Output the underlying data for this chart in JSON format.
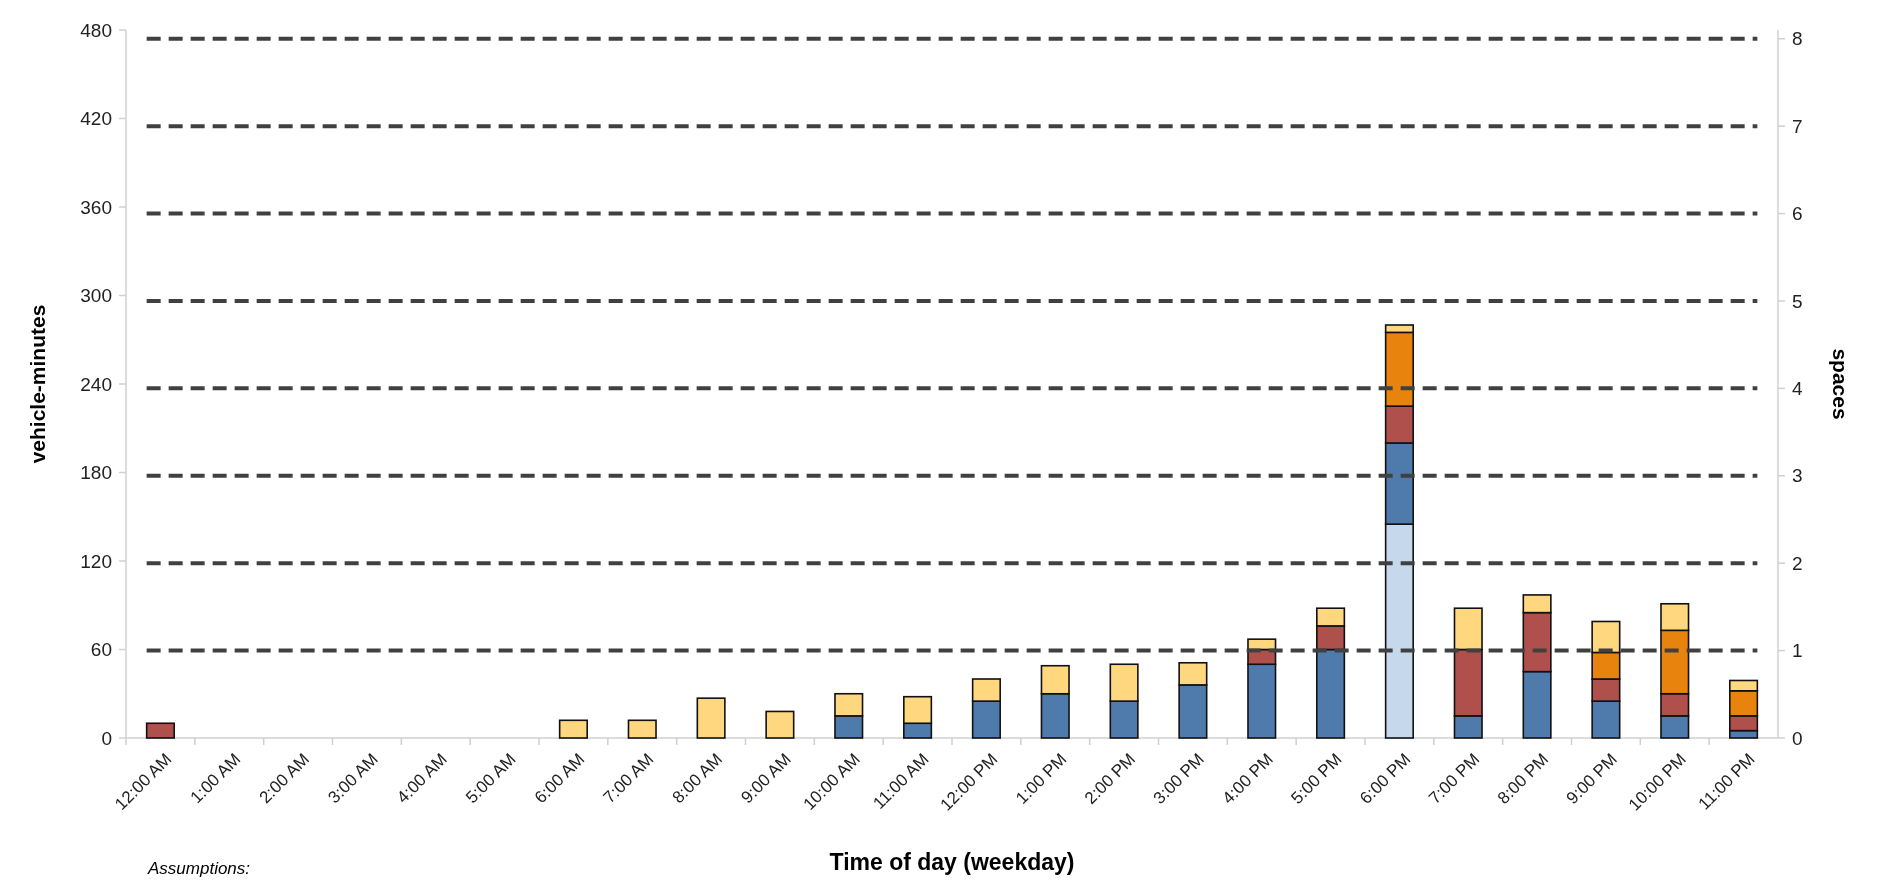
{
  "chart_data": {
    "type": "bar",
    "stacked": true,
    "xlabel": "Time of day (weekday)",
    "ylabel": "vehicle-minutes",
    "y2label": "spaces",
    "categories": [
      "12:00 AM",
      "1:00 AM",
      "2:00 AM",
      "3:00 AM",
      "4:00 AM",
      "5:00 AM",
      "6:00 AM",
      "7:00 AM",
      "8:00 AM",
      "9:00 AM",
      "10:00 AM",
      "11:00 AM",
      "12:00 PM",
      "1:00 PM",
      "2:00 PM",
      "3:00 PM",
      "4:00 PM",
      "5:00 PM",
      "6:00 PM",
      "7:00 PM",
      "8:00 PM",
      "9:00 PM",
      "10:00 PM",
      "11:00 PM"
    ],
    "series": [
      {
        "color": "#c5d8ec",
        "values": [
          0,
          0,
          0,
          0,
          0,
          0,
          0,
          0,
          0,
          0,
          0,
          0,
          0,
          0,
          0,
          0,
          0,
          0,
          145,
          0,
          0,
          0,
          0,
          0
        ]
      },
      {
        "color": "#4f7bac",
        "values": [
          0,
          0,
          0,
          0,
          0,
          0,
          0,
          0,
          0,
          0,
          15,
          10,
          25,
          30,
          25,
          36,
          50,
          60,
          55,
          15,
          45,
          25,
          15,
          5
        ]
      },
      {
        "color": "#b0504d",
        "values": [
          10,
          0,
          0,
          0,
          0,
          0,
          0,
          0,
          0,
          0,
          0,
          0,
          0,
          0,
          0,
          0,
          10,
          16,
          25,
          45,
          40,
          15,
          15,
          10
        ]
      },
      {
        "color": "#e8830e",
        "values": [
          0,
          0,
          0,
          0,
          0,
          0,
          0,
          0,
          0,
          0,
          0,
          0,
          0,
          0,
          0,
          0,
          0,
          0,
          50,
          0,
          0,
          18,
          43,
          17
        ]
      },
      {
        "color": "#fed77e",
        "values": [
          0,
          0,
          0,
          0,
          0,
          0,
          12,
          12,
          27,
          18,
          15,
          18,
          15,
          19,
          25,
          15,
          7,
          12,
          5,
          28,
          12,
          21,
          18,
          7
        ]
      }
    ],
    "ylim": [
      0,
      480
    ],
    "yticks": [
      0,
      60,
      120,
      180,
      240,
      300,
      360,
      420,
      480
    ],
    "y2lim": [
      0,
      8.1
    ],
    "y2ticks": [
      0,
      1,
      2,
      3,
      4,
      5,
      6,
      7,
      8
    ],
    "ref_lines": [
      {
        "axis": "y2",
        "value": 1,
        "color": "#404040",
        "line_style": "dashed"
      },
      {
        "axis": "y2",
        "value": 2,
        "color": "#404040",
        "line_style": "dashed"
      },
      {
        "axis": "y2",
        "value": 3,
        "color": "#404040",
        "line_style": "dashed"
      },
      {
        "axis": "y2",
        "value": 4,
        "color": "#404040",
        "line_style": "dashed"
      },
      {
        "axis": "y2",
        "value": 5,
        "color": "#404040",
        "line_style": "dashed"
      },
      {
        "axis": "y2",
        "value": 6,
        "color": "#404040",
        "line_style": "dashed"
      },
      {
        "axis": "y2",
        "value": 7,
        "color": "#404040",
        "line_style": "dashed"
      },
      {
        "axis": "y2",
        "value": 8,
        "color": "#404040",
        "line_style": "dashed"
      }
    ],
    "annotations": [
      "Assumptions:"
    ],
    "grid": false
  }
}
